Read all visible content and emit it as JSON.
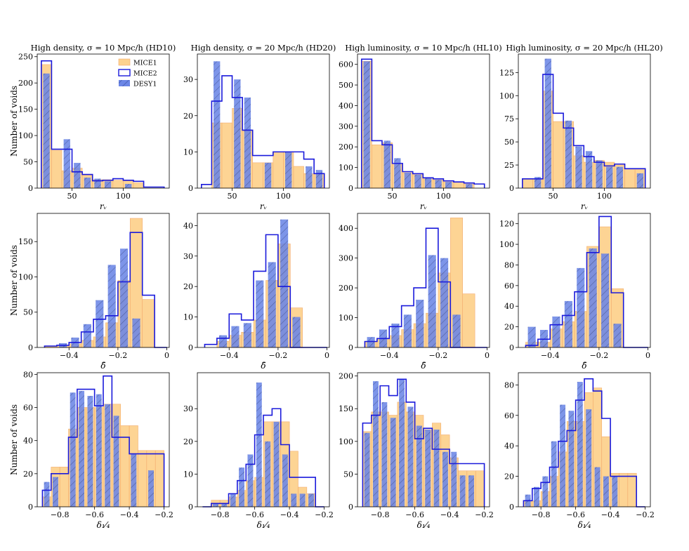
{
  "figure": {
    "ylabel": "Number of voids",
    "legend": {
      "placement": "top-right of first panel",
      "entries": [
        "MICE1",
        "MICE2",
        "DESY1"
      ]
    },
    "colors": {
      "mice1_fill": "#fdd28f",
      "mice1_edge": "#f2a96b",
      "mice2_line": "#1a1adb",
      "desy1_fill": "#6b86e6",
      "desy1_hatch": "#3a4f9e"
    }
  },
  "chart_data": [
    {
      "type": "histogram",
      "row": 0,
      "col": 0,
      "title": "High density, σ = 10 Mpc/h (HD10)",
      "xlabel": "rᵥ",
      "ylabel": "Number of voids",
      "edges": [
        20,
        30,
        40,
        50,
        60,
        70,
        80,
        90,
        100,
        110,
        120,
        130,
        140
      ],
      "xlim": [
        16,
        145
      ],
      "ylim": [
        0,
        255
      ],
      "xticks": [
        50,
        100
      ],
      "yticks": [
        0,
        50,
        100,
        150,
        200,
        250
      ],
      "series": [
        {
          "name": "MICE1",
          "values": [
            235,
            72,
            33,
            38,
            25,
            16,
            16,
            15,
            14,
            10,
            0,
            0
          ]
        },
        {
          "name": "MICE2",
          "values": [
            242,
            74,
            74,
            31,
            26,
            14,
            15,
            18,
            15,
            13,
            2,
            2
          ]
        },
        {
          "name": "DESY1",
          "values": [
            218,
            0,
            93,
            48,
            20,
            18,
            13,
            0,
            8,
            0,
            0,
            0
          ]
        }
      ]
    },
    {
      "type": "histogram",
      "row": 0,
      "col": 1,
      "title": "High density, σ = 20 Mpc/h (HD20)",
      "xlabel": "rᵥ",
      "edges": [
        20,
        30,
        40,
        50,
        60,
        70,
        80,
        90,
        100,
        110,
        120,
        130,
        140
      ],
      "xlim": [
        16,
        145
      ],
      "ylim": [
        0,
        37
      ],
      "xticks": [
        50,
        100
      ],
      "yticks": [
        0,
        10,
        20,
        30
      ],
      "series": [
        {
          "name": "MICE1",
          "values": [
            0,
            18,
            18,
            22,
            16,
            7,
            7,
            10,
            10,
            6,
            4,
            4
          ]
        },
        {
          "name": "MICE2",
          "values": [
            1,
            24,
            31,
            25,
            16,
            9,
            9,
            10,
            10,
            10,
            8,
            4
          ]
        },
        {
          "name": "DESY1",
          "values": [
            0,
            35,
            0,
            30,
            25,
            0,
            7,
            0,
            10,
            0,
            6,
            5
          ]
        }
      ]
    },
    {
      "type": "histogram",
      "row": 0,
      "col": 2,
      "title": "High luminosity, σ = 10 Mpc/h (HL10)",
      "xlabel": "rᵥ",
      "edges": [
        20,
        30,
        40,
        50,
        60,
        70,
        80,
        90,
        100,
        110,
        120,
        130,
        140
      ],
      "xlim": [
        16,
        145
      ],
      "ylim": [
        0,
        650
      ],
      "xticks": [
        50,
        100
      ],
      "yticks": [
        0,
        100,
        200,
        300,
        400,
        500,
        600
      ],
      "series": [
        {
          "name": "MICE1",
          "values": [
            615,
            210,
            220,
            115,
            75,
            65,
            45,
            40,
            30,
            25,
            20,
            0
          ]
        },
        {
          "name": "MICE2",
          "values": [
            625,
            230,
            210,
            120,
            80,
            70,
            50,
            45,
            35,
            30,
            25,
            20
          ]
        },
        {
          "name": "DESY1",
          "values": [
            615,
            0,
            230,
            145,
            75,
            65,
            50,
            40,
            30,
            0,
            20,
            0
          ]
        }
      ]
    },
    {
      "type": "histogram",
      "row": 0,
      "col": 3,
      "title": "High luminosity, σ = 20 Mpc/h (HL20)",
      "xlabel": "rᵥ",
      "edges": [
        20,
        30,
        40,
        50,
        60,
        70,
        80,
        90,
        100,
        110,
        120,
        130,
        140
      ],
      "xlim": [
        16,
        145
      ],
      "ylim": [
        0,
        145
      ],
      "xticks": [
        50,
        100
      ],
      "yticks": [
        0,
        25,
        50,
        75,
        100,
        125
      ],
      "series": [
        {
          "name": "MICE1",
          "values": [
            10,
            10,
            105,
            72,
            72,
            35,
            28,
            30,
            28,
            25,
            20,
            20
          ]
        },
        {
          "name": "MICE2",
          "values": [
            10,
            10,
            123,
            81,
            65,
            46,
            34,
            28,
            24,
            26,
            21,
            21
          ]
        },
        {
          "name": "DESY1",
          "values": [
            0,
            12,
            140,
            0,
            73,
            45,
            40,
            30,
            23,
            23,
            0,
            16
          ]
        }
      ]
    },
    {
      "type": "histogram",
      "row": 1,
      "col": 0,
      "title": "",
      "xlabel": "δ̄",
      "ylabel": "Number of voids",
      "edges": [
        -0.5,
        -0.45,
        -0.4,
        -0.35,
        -0.3,
        -0.25,
        -0.2,
        -0.15,
        -0.1,
        -0.05,
        0.0
      ],
      "xlim": [
        -0.53,
        0.01
      ],
      "ylim": [
        0,
        190
      ],
      "xticks": [
        -0.4,
        -0.2,
        0.0
      ],
      "yticks": [
        0,
        50,
        100,
        150
      ],
      "series": [
        {
          "name": "MICE1",
          "values": [
            2,
            3,
            5,
            10,
            15,
            35,
            95,
            183,
            68,
            0
          ]
        },
        {
          "name": "MICE2",
          "values": [
            2,
            3,
            7,
            22,
            40,
            45,
            93,
            163,
            74,
            0
          ]
        },
        {
          "name": "DESY1",
          "values": [
            0,
            6,
            14,
            33,
            67,
            117,
            140,
            41,
            0,
            0
          ]
        }
      ]
    },
    {
      "type": "histogram",
      "row": 1,
      "col": 1,
      "title": "",
      "xlabel": "δ̄",
      "edges": [
        -0.5,
        -0.45,
        -0.4,
        -0.35,
        -0.3,
        -0.25,
        -0.2,
        -0.15,
        -0.1,
        -0.05,
        0.0
      ],
      "xlim": [
        -0.53,
        0.01
      ],
      "ylim": [
        0,
        44
      ],
      "xticks": [
        -0.4,
        -0.2,
        0.0
      ],
      "yticks": [
        0,
        10,
        20,
        30,
        40
      ],
      "series": [
        {
          "name": "MICE1",
          "values": [
            0,
            2,
            4,
            5,
            9,
            22,
            34,
            13,
            0,
            0
          ]
        },
        {
          "name": "MICE2",
          "values": [
            1,
            3,
            11,
            9,
            25,
            37,
            20,
            0,
            0,
            0
          ]
        },
        {
          "name": "DESY1",
          "values": [
            0,
            4,
            7,
            8,
            22,
            28,
            42,
            10,
            0,
            0
          ]
        }
      ]
    },
    {
      "type": "histogram",
      "row": 1,
      "col": 2,
      "title": "",
      "xlabel": "δ̄",
      "edges": [
        -0.5,
        -0.45,
        -0.4,
        -0.35,
        -0.3,
        -0.25,
        -0.2,
        -0.15,
        -0.1,
        -0.05,
        0.0
      ],
      "xlim": [
        -0.53,
        0.01
      ],
      "ylim": [
        0,
        450
      ],
      "xticks": [
        -0.4,
        -0.2,
        0.0
      ],
      "yticks": [
        0,
        100,
        200,
        300,
        400
      ],
      "series": [
        {
          "name": "MICE1",
          "values": [
            20,
            30,
            40,
            60,
            80,
            115,
            250,
            435,
            180,
            0
          ]
        },
        {
          "name": "MICE2",
          "values": [
            20,
            30,
            70,
            140,
            200,
            400,
            220,
            0,
            0,
            0
          ]
        },
        {
          "name": "DESY1",
          "values": [
            35,
            60,
            80,
            110,
            160,
            310,
            300,
            110,
            0,
            0
          ]
        }
      ]
    },
    {
      "type": "histogram",
      "row": 1,
      "col": 3,
      "title": "",
      "xlabel": "δ̄",
      "edges": [
        -0.5,
        -0.45,
        -0.4,
        -0.35,
        -0.3,
        -0.25,
        -0.2,
        -0.15,
        -0.1,
        -0.05,
        0.0
      ],
      "xlim": [
        -0.53,
        0.01
      ],
      "ylim": [
        0,
        130
      ],
      "xticks": [
        -0.4,
        -0.2,
        0.0
      ],
      "yticks": [
        0,
        20,
        40,
        60,
        80,
        100,
        120
      ],
      "series": [
        {
          "name": "MICE1",
          "values": [
            5,
            5,
            18,
            25,
            35,
            98,
            117,
            57,
            0,
            0
          ]
        },
        {
          "name": "MICE2",
          "values": [
            2,
            8,
            22,
            31,
            54,
            92,
            127,
            53,
            0,
            0
          ]
        },
        {
          "name": "DESY1",
          "values": [
            20,
            17,
            30,
            45,
            77,
            96,
            91,
            23,
            0,
            0
          ]
        }
      ]
    },
    {
      "type": "histogram",
      "row": 2,
      "col": 0,
      "title": "",
      "xlabel": "δ₁⁄₄",
      "ylabel": "Number of voids",
      "edges": [
        -0.9,
        -0.85,
        -0.8,
        -0.75,
        -0.7,
        -0.65,
        -0.6,
        -0.55,
        -0.5,
        -0.45,
        -0.4,
        -0.35,
        -0.3,
        -0.25,
        -0.2
      ],
      "xlim": [
        -0.93,
        -0.17
      ],
      "ylim": [
        0,
        81
      ],
      "xticks": [
        -0.8,
        -0.6,
        -0.4,
        -0.2
      ],
      "yticks": [
        0,
        20,
        40,
        60,
        80
      ],
      "series": [
        {
          "name": "MICE1",
          "values": [
            6,
            24,
            24,
            47,
            60,
            60,
            60,
            62,
            62,
            49,
            49,
            34,
            34,
            34
          ]
        },
        {
          "name": "MICE2",
          "values": [
            10,
            20,
            20,
            42,
            71,
            71,
            61,
            79,
            42,
            42,
            32,
            32,
            32,
            32
          ]
        },
        {
          "name": "DESY1",
          "values": [
            15,
            18,
            0,
            69,
            70,
            67,
            68,
            62,
            55,
            0,
            32,
            0,
            22,
            0
          ]
        }
      ]
    },
    {
      "type": "histogram",
      "row": 2,
      "col": 1,
      "title": "",
      "xlabel": "δ₁⁄₄",
      "edges": [
        -0.9,
        -0.85,
        -0.8,
        -0.75,
        -0.7,
        -0.65,
        -0.6,
        -0.55,
        -0.5,
        -0.45,
        -0.4,
        -0.35,
        -0.3,
        -0.25,
        -0.2
      ],
      "xlim": [
        -0.93,
        -0.17
      ],
      "ylim": [
        0,
        41
      ],
      "xticks": [
        -0.8,
        -0.6,
        -0.4,
        -0.2
      ],
      "yticks": [
        0,
        10,
        20,
        30
      ],
      "series": [
        {
          "name": "MICE1",
          "values": [
            0,
            2,
            2,
            3,
            5,
            8,
            9,
            26,
            26,
            26,
            17,
            6,
            4,
            0
          ]
        },
        {
          "name": "MICE2",
          "values": [
            0,
            1,
            1,
            4,
            8,
            13,
            22,
            28,
            30,
            19,
            9,
            9,
            9,
            0
          ]
        },
        {
          "name": "DESY1",
          "values": [
            0,
            1,
            1,
            4,
            12,
            16,
            38,
            20,
            26,
            16,
            4,
            4,
            4,
            0
          ]
        }
      ]
    },
    {
      "type": "histogram",
      "row": 2,
      "col": 2,
      "title": "",
      "xlabel": "δ₁⁄₄",
      "edges": [
        -0.9,
        -0.85,
        -0.8,
        -0.75,
        -0.7,
        -0.65,
        -0.6,
        -0.55,
        -0.5,
        -0.45,
        -0.4,
        -0.35,
        -0.3,
        -0.25,
        -0.2
      ],
      "xlim": [
        -0.93,
        -0.17
      ],
      "ylim": [
        0,
        205
      ],
      "xticks": [
        -0.8,
        -0.6,
        -0.4,
        -0.2
      ],
      "yticks": [
        0,
        50,
        100,
        150,
        200
      ],
      "series": [
        {
          "name": "MICE1",
          "values": [
            115,
            145,
            145,
            140,
            160,
            145,
            140,
            118,
            128,
            110,
            75,
            55,
            55,
            55
          ]
        },
        {
          "name": "MICE2",
          "values": [
            128,
            140,
            185,
            170,
            195,
            160,
            104,
            120,
            88,
            88,
            66,
            66,
            66,
            66
          ]
        },
        {
          "name": "DESY1",
          "values": [
            113,
            192,
            160,
            136,
            195,
            153,
            124,
            118,
            118,
            84,
            84,
            48,
            48,
            0
          ]
        }
      ]
    },
    {
      "type": "histogram",
      "row": 2,
      "col": 3,
      "title": "",
      "xlabel": "δ₁⁄₄",
      "edges": [
        -0.9,
        -0.85,
        -0.8,
        -0.75,
        -0.7,
        -0.65,
        -0.6,
        -0.55,
        -0.5,
        -0.45,
        -0.4,
        -0.35,
        -0.3,
        -0.25,
        -0.2
      ],
      "xlim": [
        -0.93,
        -0.17
      ],
      "ylim": [
        0,
        88
      ],
      "xticks": [
        -0.8,
        -0.6,
        -0.4,
        -0.2
      ],
      "yticks": [
        0,
        20,
        40,
        60,
        80
      ],
      "series": [
        {
          "name": "MICE1",
          "values": [
            4,
            4,
            10,
            20,
            36,
            56,
            56,
            75,
            78,
            46,
            22,
            22,
            22,
            0
          ]
        },
        {
          "name": "MICE2",
          "values": [
            4,
            12,
            16,
            26,
            43,
            50,
            70,
            84,
            76,
            58,
            20,
            20,
            20,
            0
          ]
        },
        {
          "name": "DESY1",
          "values": [
            8,
            13,
            20,
            43,
            67,
            63,
            82,
            64,
            26,
            20,
            20,
            0,
            0,
            0
          ]
        }
      ]
    }
  ]
}
